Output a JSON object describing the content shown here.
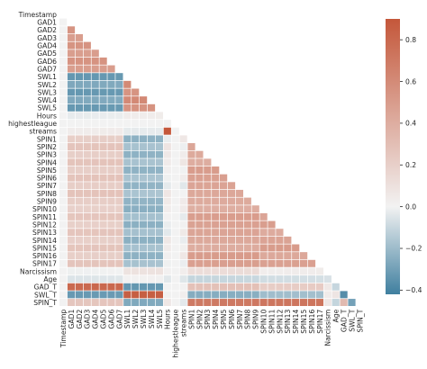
{
  "chart_data": {
    "type": "heatmap",
    "title": "",
    "xlabel": "",
    "ylabel": "",
    "mask": "upper-triangle including diagonal",
    "grid": true,
    "colormap": {
      "low": "#3f7f9f",
      "mid": "#f2f2f2",
      "high": "#c4573a"
    },
    "vmin": -0.42,
    "vmax": 0.9,
    "colorbar": {
      "position": "right",
      "ticks": [
        "0.8",
        "0.6",
        "0.4",
        "0.2",
        "0.0",
        "−0.2",
        "−0.4"
      ],
      "tick_values": [
        0.8,
        0.6,
        0.4,
        0.2,
        0.0,
        -0.2,
        -0.4
      ]
    },
    "variables": [
      "Timestamp",
      "GAD1",
      "GAD2",
      "GAD3",
      "GAD4",
      "GAD5",
      "GAD6",
      "GAD7",
      "SWL1",
      "SWL2",
      "SWL3",
      "SWL4",
      "SWL5",
      "Hours",
      "highestleague",
      "streams",
      "SPIN1",
      "SPIN2",
      "SPIN3",
      "SPIN4",
      "SPIN5",
      "SPIN6",
      "SPIN7",
      "SPIN8",
      "SPIN9",
      "SPIN10",
      "SPIN11",
      "SPIN12",
      "SPIN13",
      "SPIN14",
      "SPIN15",
      "SPIN16",
      "SPIN17",
      "Narcissism",
      "Age",
      "GAD_T",
      "SWL_T",
      "SPIN_T"
    ],
    "group_correlations": {
      "Timestamp": {
        "Timestamp": 0.0,
        "GAD": 0.0,
        "SWL": 0.0,
        "Hours": 0.0,
        "highestleague": 0.0,
        "streams": 0.0,
        "SPIN": 0.0,
        "Narcissism": 0.0,
        "Age": 0.0,
        "GAD_T": 0.0,
        "SWL_T": 0.0,
        "SPIN_T": 0.0
      },
      "GAD": {
        "GAD": 0.5,
        "SWL": -0.3,
        "Hours": 0.02,
        "highestleague": 0.0,
        "streams": 0.02,
        "SPIN": 0.22,
        "Narcissism": 0.05,
        "Age": -0.05,
        "GAD_T": 0.78,
        "SWL_T": -0.35,
        "SPIN_T": 0.28
      },
      "SWL": {
        "SWL": 0.6,
        "Hours": -0.02,
        "highestleague": 0.0,
        "streams": -0.02,
        "SPIN": -0.2,
        "Narcissism": 0.05,
        "Age": 0.03,
        "GAD_T": -0.33,
        "SWL_T": 0.85,
        "SPIN_T": -0.22
      },
      "Hours": {
        "highestleague": 0.0,
        "streams": 0.9,
        "SPIN": 0.02,
        "Narcissism": 0.02,
        "Age": -0.05,
        "GAD_T": 0.02,
        "SWL_T": -0.02,
        "SPIN_T": 0.02
      },
      "highestleague": {
        "streams": 0.0,
        "SPIN": 0.0,
        "Narcissism": 0.0,
        "Age": 0.0,
        "GAD_T": 0.0,
        "SWL_T": 0.0,
        "SPIN_T": 0.0
      },
      "streams": {
        "SPIN": 0.02,
        "Narcissism": 0.02,
        "Age": -0.05,
        "GAD_T": 0.02,
        "SWL_T": -0.02,
        "SPIN_T": 0.02
      },
      "SPIN": {
        "SPIN": 0.45,
        "Narcissism": 0.08,
        "Age": -0.05,
        "GAD_T": 0.25,
        "SWL_T": -0.22,
        "SPIN_T": 0.72
      },
      "Narcissism": {
        "Age": -0.02,
        "GAD_T": 0.06,
        "SWL_T": 0.05,
        "SPIN_T": 0.08
      },
      "Age": {
        "GAD_T": -0.05,
        "SWL_T": 0.03,
        "SPIN_T": -0.05
      },
      "GAD_T": {
        "SWL_T": -0.38,
        "SPIN_T": 0.3
      },
      "SWL_T": {
        "SPIN_T": -0.25
      }
    }
  }
}
